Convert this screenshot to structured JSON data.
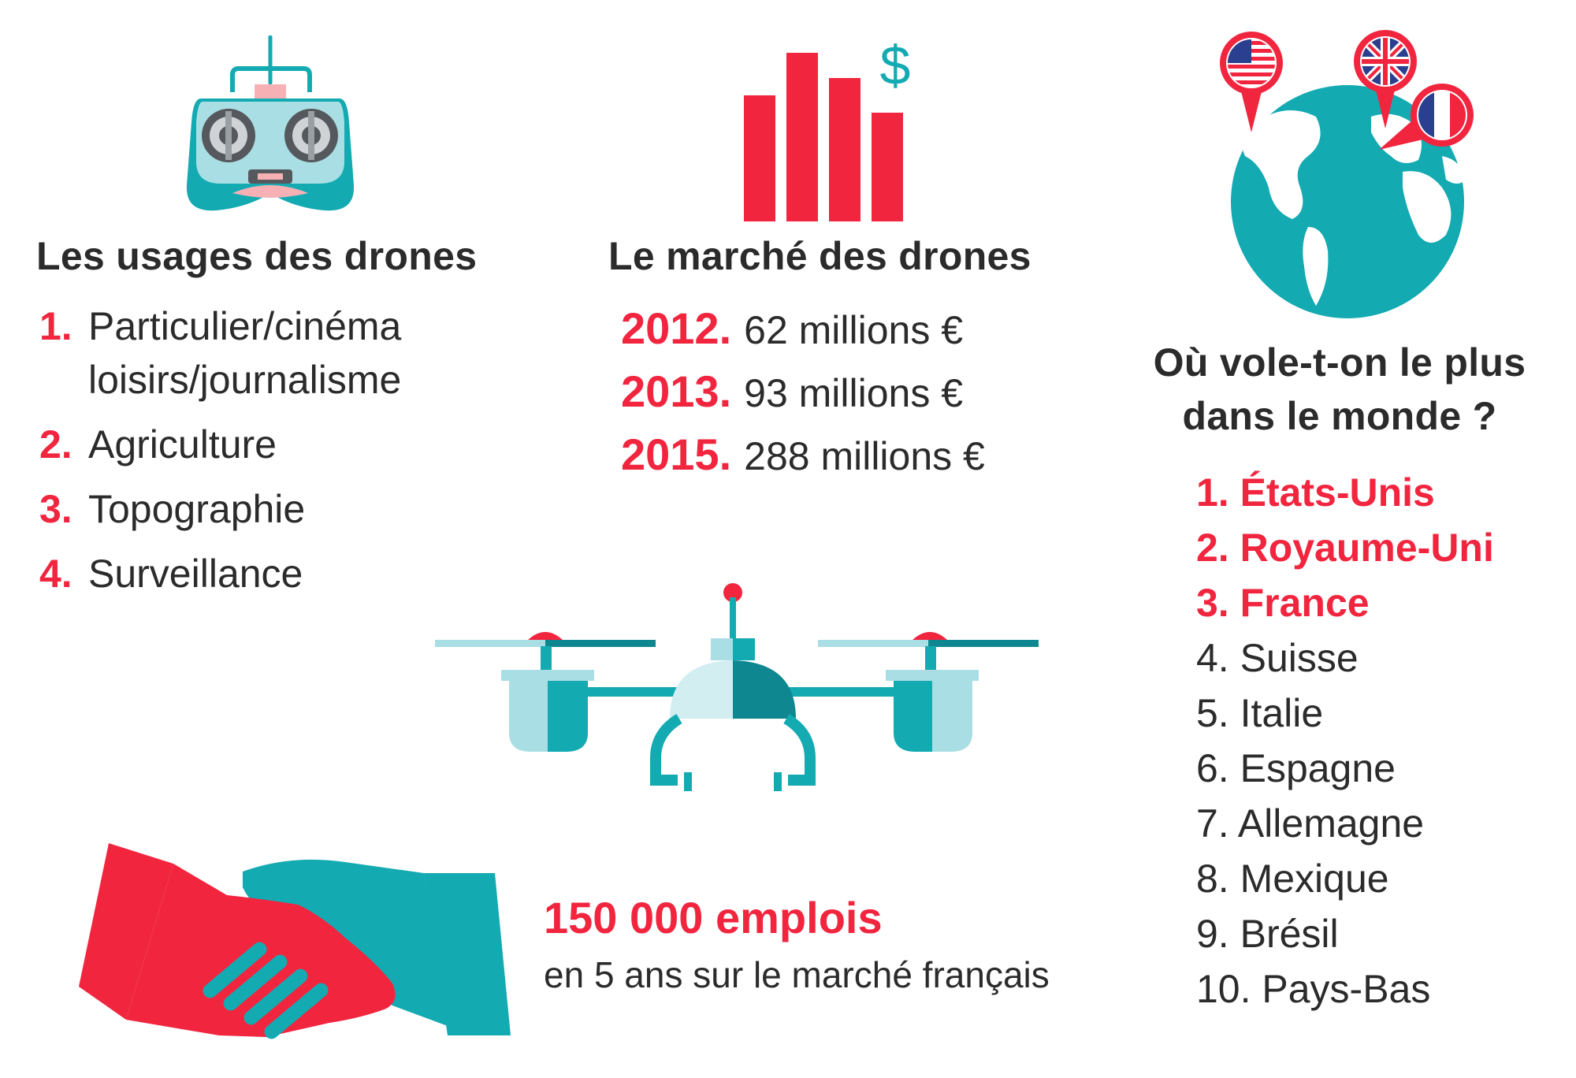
{
  "colors": {
    "red": "#f2253f",
    "teal": "#13aab2",
    "teal_dark": "#0e8790",
    "teal_light": "#a9dfe4",
    "teal_pale": "#d2eef1",
    "pink": "#f7b1b5",
    "text": "#2b2b2b"
  },
  "icons": {
    "controller": "remote-controller-icon",
    "market": "bar-chart-dollar-icon",
    "globe": "globe-flags-icon",
    "drone": "drone-icon",
    "handshake": "handshake-icon"
  },
  "usages": {
    "title": "Les usages des drones",
    "items": [
      {
        "num": "1.",
        "label": "Particulier/cinéma\nloisirs/journalisme"
      },
      {
        "num": "2.",
        "label": "Agriculture"
      },
      {
        "num": "3.",
        "label": "Topographie"
      },
      {
        "num": "4.",
        "label": "Surveillance"
      }
    ]
  },
  "market": {
    "title": "Le marché des drones",
    "currency_symbol": "$",
    "items": [
      {
        "year": "2012.",
        "value": "62 millions €"
      },
      {
        "year": "2013.",
        "value": "93 millions €"
      },
      {
        "year": "2015.",
        "value": "288 millions €"
      }
    ]
  },
  "countries": {
    "title": "Où vole-t-on le plus\ndans le monde ?",
    "top": [
      "1. États-Unis",
      "2. Royaume-Uni",
      "3. France"
    ],
    "rest": [
      "4. Suisse",
      "5. Italie",
      "6. Espagne",
      "7. Allemagne",
      "8. Mexique",
      "9. Brésil",
      "10. Pays-Bas"
    ]
  },
  "jobs": {
    "title": "150 000 emplois",
    "subtitle": "en 5 ans sur le marché français"
  }
}
